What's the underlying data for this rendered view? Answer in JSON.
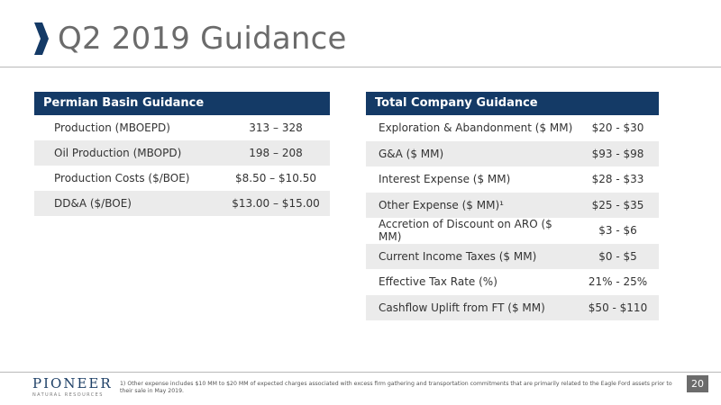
{
  "slide": {
    "title": "Q2 2019 Guidance",
    "page_number": "20"
  },
  "colors": {
    "header_navy": "#143a66",
    "row_alt": "#ebebeb",
    "title_gray": "#6b6b6b",
    "page_badge": "#6c6c6c"
  },
  "icons": {
    "title_marker": "chevron-right-icon"
  },
  "permian": {
    "header": "Permian Basin Guidance",
    "rows": [
      {
        "label": "Production (MBOEPD)",
        "value": "313 – 328"
      },
      {
        "label": "Oil Production (MBOPD)",
        "value": "198 – 208"
      },
      {
        "label": "Production Costs ($/BOE)",
        "value": "$8.50 – $10.50"
      },
      {
        "label": "DD&A ($/BOE)",
        "value": "$13.00 – $15.00"
      }
    ]
  },
  "total": {
    "header": "Total Company Guidance",
    "rows": [
      {
        "label": "Exploration & Abandonment ($ MM)",
        "value": "$20 - $30"
      },
      {
        "label": "G&A ($ MM)",
        "value": "$93 - $98"
      },
      {
        "label": "Interest Expense ($ MM)",
        "value": "$28 - $33"
      },
      {
        "label": "Other Expense ($ MM)¹",
        "value": "$25 - $35"
      },
      {
        "label": "Accretion of Discount on ARO ($ MM)",
        "value": "$3 - $6"
      },
      {
        "label": "Current Income Taxes ($ MM)",
        "value": "$0 - $5"
      },
      {
        "label": "Effective Tax Rate (%)",
        "value": "21% - 25%"
      },
      {
        "label": "Cashflow Uplift from FT ($ MM)",
        "value": "$50 - $110"
      }
    ]
  },
  "logo": {
    "name": "PIONEER",
    "tagline": "NATURAL RESOURCES"
  },
  "footnote": "1) Other expense includes $10 MM to $20 MM of expected charges associated with excess firm gathering and transportation commitments that are primarily related to the Eagle Ford assets prior to their sale in May 2019."
}
